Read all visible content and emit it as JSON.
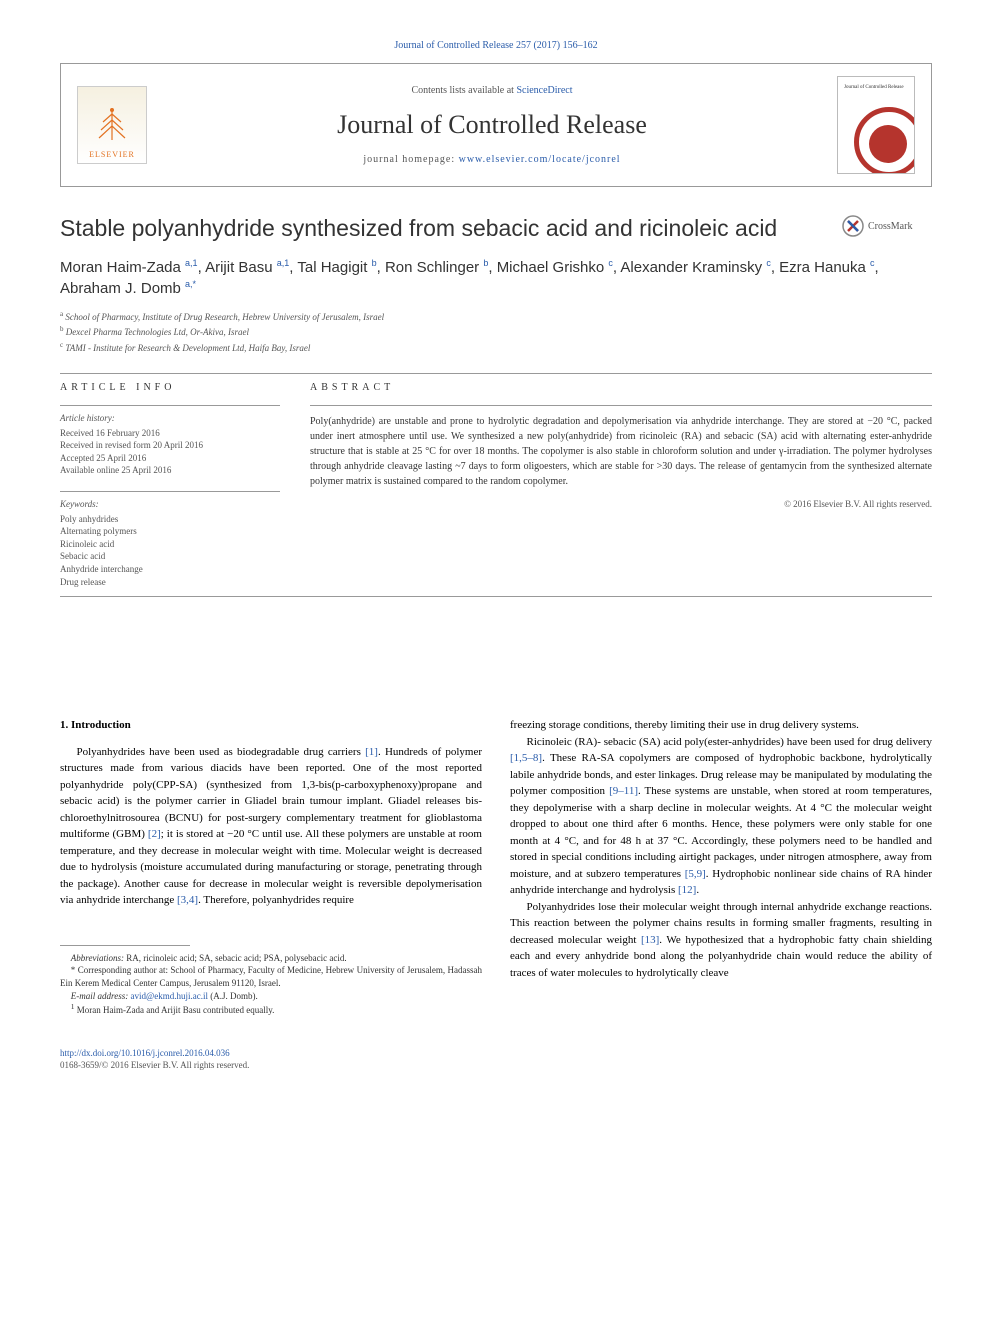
{
  "journalRef": "Journal of Controlled Release 257 (2017) 156–162",
  "header": {
    "contentsPrefix": "Contents lists available at ",
    "contentsLink": "ScienceDirect",
    "journalName": "Journal of Controlled Release",
    "homepagePrefix": "journal homepage: ",
    "homepageLink": "www.elsevier.com/locate/jconrel",
    "publisherName": "ELSEVIER",
    "coverLabel": "Journal of Controlled Release"
  },
  "crossmark": "CrossMark",
  "title": "Stable polyanhydride synthesized from sebacic acid and ricinoleic acid",
  "authors": [
    {
      "name": "Moran Haim-Zada",
      "sup": "a,1"
    },
    {
      "name": "Arijit Basu",
      "sup": "a,1"
    },
    {
      "name": "Tal Hagigit",
      "sup": "b"
    },
    {
      "name": "Ron Schlinger",
      "sup": "b"
    },
    {
      "name": "Michael Grishko",
      "sup": "c"
    },
    {
      "name": "Alexander Kraminsky",
      "sup": "c"
    },
    {
      "name": "Ezra Hanuka",
      "sup": "c"
    },
    {
      "name": "Abraham J. Domb",
      "sup": "a,*"
    }
  ],
  "affiliations": [
    {
      "label": "a",
      "text": "School of Pharmacy, Institute of Drug Research, Hebrew University of Jerusalem, Israel"
    },
    {
      "label": "b",
      "text": "Dexcel Pharma Technologies Ltd, Or-Akiva, Israel"
    },
    {
      "label": "c",
      "text": "TAMI - Institute for Research & Development Ltd, Haifa Bay, Israel"
    }
  ],
  "articleInfo": {
    "heading": "ARTICLE INFO",
    "historyHeading": "Article history:",
    "history": [
      "Received 16 February 2016",
      "Received in revised form 20 April 2016",
      "Accepted 25 April 2016",
      "Available online 25 April 2016"
    ],
    "keywordsHeading": "Keywords:",
    "keywords": [
      "Poly anhydrides",
      "Alternating polymers",
      "Ricinoleic acid",
      "Sebacic acid",
      "Anhydride interchange",
      "Drug release"
    ]
  },
  "abstract": {
    "heading": "ABSTRACT",
    "text": "Poly(anhydride) are unstable and prone to hydrolytic degradation and depolymerisation via anhydride interchange. They are stored at −20 °C, packed under inert atmosphere until use. We synthesized a new poly(anhydride) from ricinoleic (RA) and sebacic (SA) acid with alternating ester-anhydride structure that is stable at 25 °C for over 18 months. The copolymer is also stable in chloroform solution and under γ-irradiation. The polymer hydrolyses through anhydride cleavage lasting ~7 days to form oligoesters, which are stable for >30 days. The release of gentamycin from the synthesized alternate polymer matrix is sustained compared to the random copolymer.",
    "copyright": "© 2016 Elsevier B.V. All rights reserved."
  },
  "sections": {
    "introHeading": "1. Introduction",
    "col1": {
      "p1a": "Polyanhydrides have been used as biodegradable drug carriers ",
      "ref1": "[1]",
      "p1b": ". Hundreds of polymer structures made from various diacids have been reported. One of the most reported polyanhydride poly(CPP-SA) (synthesized from 1,3-bis(p-carboxyphenoxy)propane and sebacic acid) is the polymer carrier in Gliadel brain tumour implant. Gliadel releases bis-chloroethylnitrosourea (BCNU) for post-surgery complementary treatment for glioblastoma multiforme (GBM) ",
      "ref2": "[2]",
      "p1c": "; it is stored at −20 °C until use. All these polymers are unstable at room temperature, and they decrease in molecular weight with time. Molecular weight is decreased due to hydrolysis (moisture accumulated during manufacturing or storage, penetrating through the package). Another cause for decrease in molecular weight is reversible depolymerisation via anhydride interchange ",
      "ref34": "[3,4]",
      "p1d": ". Therefore, polyanhydrides require"
    },
    "col2": {
      "p1": "freezing storage conditions, thereby limiting their use in drug delivery systems.",
      "p2a": "Ricinoleic (RA)- sebacic (SA) acid poly(ester-anhydrides) have been used for drug delivery ",
      "ref158": "[1,5–8]",
      "p2b": ". These RA-SA copolymers are composed of hydrophobic backbone, hydrolytically labile anhydride bonds, and ester linkages. Drug release may be manipulated by modulating the polymer composition ",
      "ref911": "[9–11]",
      "p2c": ". These systems are unstable, when stored at room temperatures, they depolymerise with a sharp decline in molecular weights. At 4 °C the molecular weight dropped to about one third after 6 months. Hence, these polymers were only stable for one month at 4 °C, and for 48 h at 37 °C. Accordingly, these polymers need to be handled and stored in special conditions including airtight packages, under nitrogen atmosphere, away from moisture, and at subzero temperatures ",
      "ref59": "[5,9]",
      "p2d": ". Hydrophobic nonlinear side chains of RA hinder anhydride interchange and hydrolysis ",
      "ref12": "[12]",
      "p2e": ".",
      "p3a": "Polyanhydrides lose their molecular weight through internal anhydride exchange reactions. This reaction between the polymer chains results in forming smaller fragments, resulting in decreased molecular weight ",
      "ref13": "[13]",
      "p3b": ". We hypothesized that a hydrophobic fatty chain shielding each and every anhydride bond along the polyanhydride chain would reduce the ability of traces of water molecules to hydrolytically cleave"
    }
  },
  "footnotes": {
    "abbrevLabel": "Abbreviations:",
    "abbrev": " RA, ricinoleic acid; SA, sebacic acid; PSA, polysebacic acid.",
    "corresponding": "Corresponding author at: School of Pharmacy, Faculty of Medicine, Hebrew University of Jerusalem, Hadassah Ein Kerem Medical Center Campus, Jerusalem 91120, Israel.",
    "emailLabel": "E-mail address: ",
    "email": "avid@ekmd.huji.ac.il",
    "emailSuffix": " (A.J. Domb).",
    "equal": "Moran Haim-Zada and Arijit Basu contributed equally."
  },
  "footer": {
    "doi": "http://dx.doi.org/10.1016/j.jconrel.2016.04.036",
    "issn": "0168-3659/© 2016 Elsevier B.V. All rights reserved."
  },
  "colors": {
    "link": "#2a5caa",
    "orange": "#e37222",
    "red": "#b5342d",
    "text": "#333333",
    "muted": "#555555",
    "rule": "#999999"
  }
}
